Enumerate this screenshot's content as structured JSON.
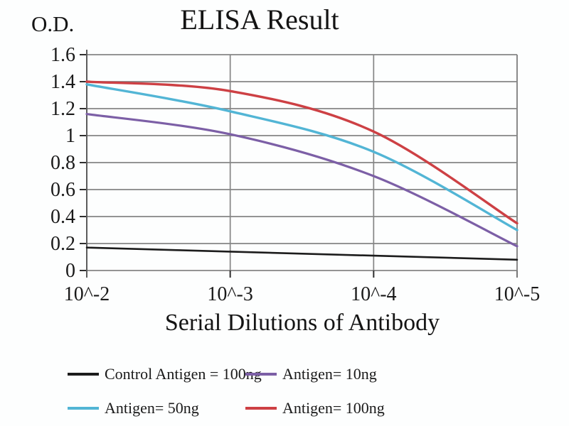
{
  "chart_data": {
    "type": "line",
    "title": "ELISA Result",
    "ylabel": "O.D.",
    "xlabel": "Serial Dilutions of Antibody",
    "categories": [
      "10^-2",
      "10^-3",
      "10^-4",
      "10^-5"
    ],
    "ylim": [
      0,
      1.6
    ],
    "ytick_values": [
      0,
      0.2,
      0.4,
      0.6,
      0.8,
      1,
      1.2,
      1.4,
      1.6
    ],
    "ytick_labels": [
      "0",
      "0.2",
      "0.4",
      "0.6",
      "0.8",
      "1",
      "1.2",
      "1.4",
      "1.6"
    ],
    "grid": true,
    "legend_position": "bottom",
    "series": [
      {
        "name": "Control Antigen = 100ng",
        "color": "#1c1c1c",
        "width": 2.6,
        "values": [
          0.17,
          0.14,
          0.11,
          0.08
        ]
      },
      {
        "name": "Antigen= 10ng",
        "color": "#7c5fa6",
        "width": 3.2,
        "values": [
          1.16,
          1.01,
          0.7,
          0.18
        ]
      },
      {
        "name": "Antigen= 50ng",
        "color": "#52b5d5",
        "width": 3.4,
        "values": [
          1.38,
          1.18,
          0.88,
          0.3
        ]
      },
      {
        "name": "Antigen= 100ng",
        "color": "#cd4044",
        "width": 3.4,
        "values": [
          1.4,
          1.33,
          1.03,
          0.35
        ]
      }
    ],
    "colors": {
      "gridline": "#858585",
      "axis": "#5c5c5c",
      "tick": "#2f2f2f",
      "text": "#1a1a1a"
    }
  }
}
